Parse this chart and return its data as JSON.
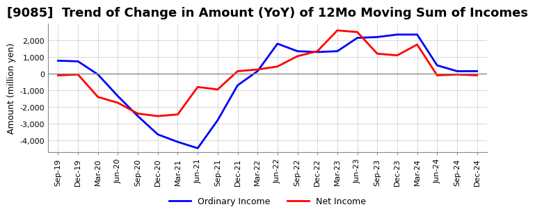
{
  "title": "[9085]  Trend of Change in Amount (YoY) of 12Mo Moving Sum of Incomes",
  "ylabel": "Amount (million yen)",
  "x_labels": [
    "Sep-19",
    "Dec-19",
    "Mar-20",
    "Jun-20",
    "Sep-20",
    "Dec-20",
    "Mar-21",
    "Jun-21",
    "Sep-21",
    "Dec-21",
    "Mar-22",
    "Jun-22",
    "Sep-22",
    "Dec-22",
    "Mar-23",
    "Jun-23",
    "Sep-23",
    "Dec-23",
    "Mar-24",
    "Jun-24",
    "Sep-24",
    "Dec-24"
  ],
  "ordinary_income": [
    780,
    740,
    -50,
    -1350,
    -2550,
    -3650,
    -4100,
    -4480,
    -2800,
    -700,
    150,
    1800,
    1350,
    1300,
    1350,
    2150,
    2200,
    2350,
    2350,
    500,
    150,
    150
  ],
  "net_income": [
    -100,
    -50,
    -1400,
    -1750,
    -2400,
    -2550,
    -2450,
    -800,
    -950,
    150,
    250,
    430,
    1050,
    1350,
    2600,
    2500,
    1200,
    1100,
    1750,
    -100,
    -50,
    -100
  ],
  "ordinary_color": "#0000ff",
  "net_color": "#ff0000",
  "ylim": [
    -4700,
    3000
  ],
  "yticks": [
    -4000,
    -3000,
    -2000,
    -1000,
    0,
    1000,
    2000
  ],
  "background_color": "#ffffff",
  "plot_bg_color": "#ffffff",
  "grid_color": "#888888",
  "zero_line_color": "#888888",
  "title_fontsize": 13,
  "label_fontsize": 9,
  "tick_fontsize": 8,
  "linewidth": 2.0
}
